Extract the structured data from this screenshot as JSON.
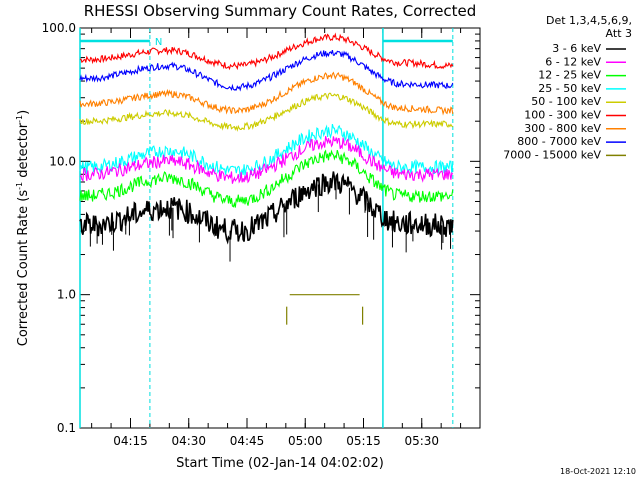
{
  "chart_data": {
    "type": "line",
    "title": "RHESSI Observing Summary Count Rates, Corrected",
    "xlabel": "Start Time (02-Jan-14 04:02:02)",
    "ylabel_main": "Corrected Count Rate (s",
    "ylabel_sup": "-1",
    "ylabel_mid": " detector",
    "ylabel_sup2": "-1",
    "ylabel_end": ")",
    "y_scale": "log",
    "ylim": [
      0.1,
      100.0
    ],
    "xlim_minutes_from_0400": [
      2,
      45
    ],
    "y_ticks": [
      "0.1",
      "1.0",
      "10.0",
      "100.0"
    ],
    "x_ticks": [
      "04:15",
      "04:30",
      "04:45",
      "05:00",
      "05:15",
      "05:30"
    ],
    "legend": {
      "placement": "right",
      "header_line1": "Det 1,3,4,5,6,9,",
      "header_line2": "Att 3",
      "entries": [
        {
          "name": "3 - 6 keV",
          "color": "#000000"
        },
        {
          "name": "6 - 12 keV",
          "color": "#ff00ff"
        },
        {
          "name": "12 - 25 keV",
          "color": "#00ff00"
        },
        {
          "name": "25 - 50 keV",
          "color": "#00ffff"
        },
        {
          "name": "50 - 100 keV",
          "color": "#cccc00"
        },
        {
          "name": "100 - 300 keV",
          "color": "#ff0000"
        },
        {
          "name": "300 - 800 keV",
          "color": "#ff8000"
        },
        {
          "name": "800 - 7000 keV",
          "color": "#0000ff"
        },
        {
          "name": "7000 - 15000 keV",
          "color": "#808000"
        }
      ]
    },
    "markers": {
      "night_bar_color": "#00e0e0",
      "night_label": "N",
      "vertical_lines_times": [
        "04:02",
        "04:20",
        "05:20",
        "05:38"
      ]
    },
    "series_profiles": [
      {
        "name": "100 - 300 keV",
        "color": "#ff0000",
        "t": [
          "04:04",
          "04:25",
          "04:42",
          "05:07",
          "05:25",
          "05:38"
        ],
        "y": [
          58,
          68,
          52,
          85,
          55,
          52
        ]
      },
      {
        "name": "800 - 7000 keV",
        "color": "#0000ff",
        "t": [
          "04:04",
          "04:25",
          "04:42",
          "05:07",
          "05:25",
          "05:38"
        ],
        "y": [
          42,
          52,
          36,
          65,
          38,
          37
        ]
      },
      {
        "name": "300 - 800 keV",
        "color": "#ff8000",
        "t": [
          "04:04",
          "04:25",
          "04:42",
          "05:07",
          "05:25",
          "05:38"
        ],
        "y": [
          27,
          32,
          24,
          44,
          25,
          24
        ]
      },
      {
        "name": "50 - 100 keV",
        "color": "#cccc00",
        "t": [
          "04:04",
          "04:25",
          "04:42",
          "05:07",
          "05:25",
          "05:38"
        ],
        "y": [
          20,
          23,
          18,
          31,
          19,
          19
        ]
      },
      {
        "name": "25 - 50 keV",
        "color": "#00ffff",
        "t": [
          "04:04",
          "04:25",
          "04:42",
          "05:07",
          "05:25",
          "05:38"
        ],
        "y": [
          9,
          12,
          8.5,
          17,
          9,
          9
        ]
      },
      {
        "name": "6 - 12 keV",
        "color": "#ff00ff",
        "t": [
          "04:04",
          "04:25",
          "04:42",
          "05:07",
          "05:25",
          "05:38"
        ],
        "y": [
          8,
          10,
          7.5,
          14,
          8,
          8
        ]
      },
      {
        "name": "12 - 25 keV",
        "color": "#00ff00",
        "t": [
          "04:04",
          "04:25",
          "04:42",
          "05:07",
          "05:25",
          "05:38"
        ],
        "y": [
          5.5,
          7.5,
          5,
          11,
          5.5,
          5.5
        ]
      },
      {
        "name": "3 - 6 keV",
        "color": "#000000",
        "t": [
          "04:04",
          "04:25",
          "04:42",
          "05:07",
          "05:25",
          "05:38"
        ],
        "y": [
          3.3,
          4.5,
          3.0,
          7.0,
          3.4,
          3.3
        ]
      },
      {
        "name": "7000 - 15000 keV",
        "color": "#808000",
        "t": [
          "04:56",
          "05:14"
        ],
        "y": [
          1.0,
          1.0
        ]
      }
    ]
  },
  "footer_timestamp": "18-Oct-2021 12:10"
}
